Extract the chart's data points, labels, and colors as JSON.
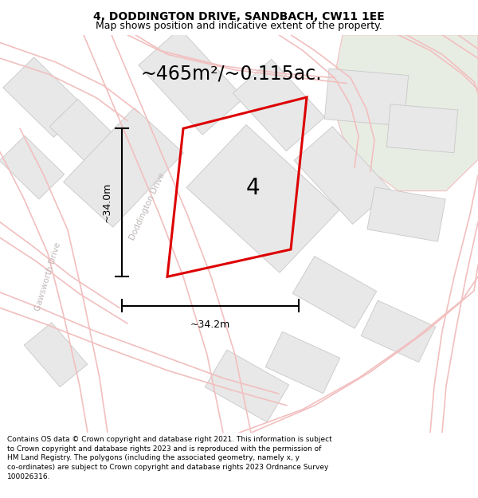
{
  "title": "4, DODDINGTON DRIVE, SANDBACH, CW11 1EE",
  "subtitle": "Map shows position and indicative extent of the property.",
  "area_text": "~465m²/~0.115ac.",
  "label_34m_v": "~34.0m",
  "label_34m_h": "~34.2m",
  "plot_number": "4",
  "footer": "Contains OS data © Crown copyright and database right 2021. This information is subject to Crown copyright and database rights 2023 and is reproduced with the permission of HM Land Registry. The polygons (including the associated geometry, namely x, y co-ordinates) are subject to Crown copyright and database rights 2023 Ordnance Survey 100026316.",
  "bg_color": "#ffffff",
  "map_bg": "#f7f6f4",
  "road_color": "#f2bfbf",
  "road_lw": 1.2,
  "plot_color": "#dd0000",
  "block_fill": "#e8e8e8",
  "block_edge": "#c8c8c8",
  "block_lw": 0.6,
  "green_color": "#e8ede4",
  "title_fontsize": 10,
  "subtitle_fontsize": 9,
  "area_fontsize": 17,
  "plot_label_fontsize": 20,
  "footer_fontsize": 6.5,
  "street_label_color": "#c0b8b8",
  "dim_label_fontsize": 9,
  "dim_lw": 1.5,
  "separator_color": "#aaaaaa"
}
